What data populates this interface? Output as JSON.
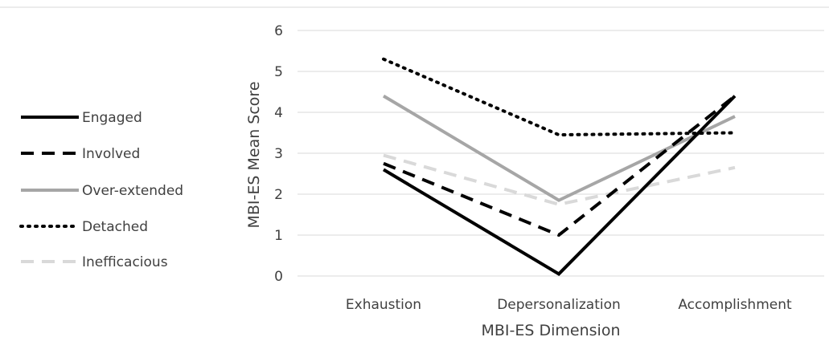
{
  "chart_data": {
    "type": "line",
    "title": "",
    "xlabel": "MBI-ES Dimension",
    "ylabel": "MBI-ES Mean Score",
    "categories": [
      "Exhaustion",
      "Depersonalization",
      "Accomplishment"
    ],
    "ylim": [
      0,
      6
    ],
    "yticks": [
      0,
      1,
      2,
      3,
      4,
      5,
      6
    ],
    "grid": true,
    "legend_position": "left",
    "series": [
      {
        "name": "Engaged",
        "values": [
          2.6,
          0.05,
          4.4
        ],
        "color": "#000000",
        "style": "solid"
      },
      {
        "name": "Involved",
        "values": [
          2.75,
          1.0,
          4.4
        ],
        "color": "#000000",
        "style": "dashed"
      },
      {
        "name": "Over-extended",
        "values": [
          4.4,
          1.85,
          3.9
        ],
        "color": "#a6a6a6",
        "style": "solid"
      },
      {
        "name": "Detached",
        "values": [
          5.3,
          3.45,
          3.5
        ],
        "color": "#000000",
        "style": "dotted"
      },
      {
        "name": "Inefficacious",
        "values": [
          2.95,
          1.75,
          2.65
        ],
        "color": "#d9d9d9",
        "style": "dashed"
      }
    ]
  }
}
